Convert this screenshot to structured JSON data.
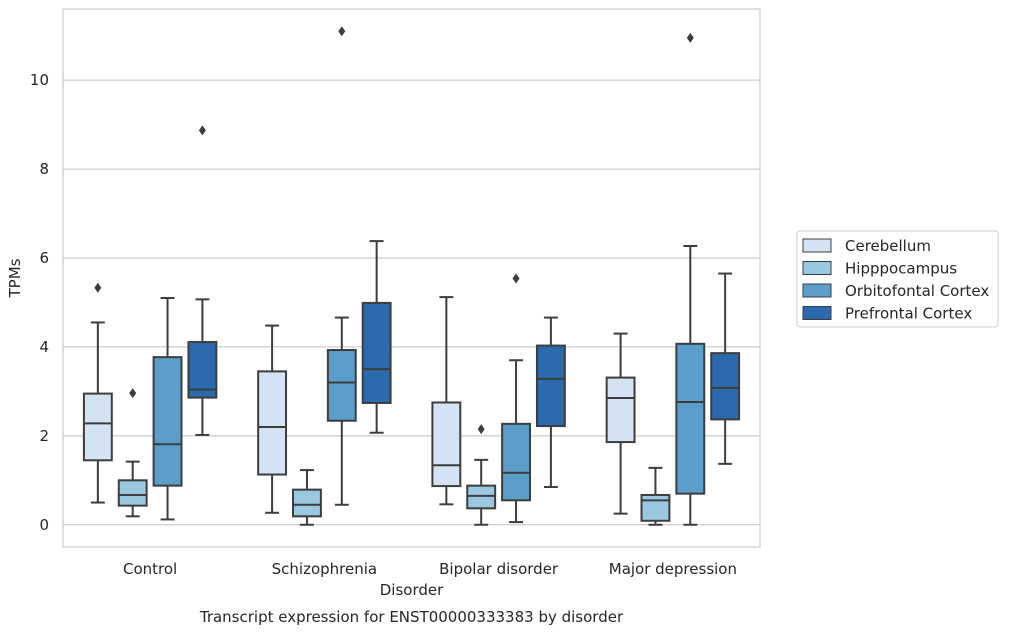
{
  "chart_data": {
    "type": "boxplot",
    "title": "",
    "caption": "Transcript expression for ENST00000333383 by disorder",
    "xlabel": "Disorder",
    "ylabel": "TPMs",
    "ylim": [
      -0.5,
      11.6
    ],
    "yticks": [
      0,
      2,
      4,
      6,
      8,
      10
    ],
    "grid": "horizontal",
    "legend_position": "right",
    "categories": [
      "Control",
      "Schizophrenia",
      "Bipolar disorder",
      "Major depression"
    ],
    "series": [
      {
        "name": "Cerebellum",
        "color": "#d3e3f3",
        "boxes": [
          {
            "whislo": 0.5,
            "q1": 1.45,
            "med": 2.28,
            "q3": 2.95,
            "whishi": 4.55,
            "fliers": [
              5.33
            ]
          },
          {
            "whislo": 0.27,
            "q1": 1.13,
            "med": 2.2,
            "q3": 3.45,
            "whishi": 4.48,
            "fliers": []
          },
          {
            "whislo": 0.46,
            "q1": 0.87,
            "med": 1.34,
            "q3": 2.75,
            "whishi": 5.12,
            "fliers": []
          },
          {
            "whislo": 0.25,
            "q1": 1.86,
            "med": 2.85,
            "q3": 3.31,
            "whishi": 4.3,
            "fliers": []
          }
        ]
      },
      {
        "name": "Hipppocampus",
        "color": "#9ac8e0",
        "boxes": [
          {
            "whislo": 0.19,
            "q1": 0.43,
            "med": 0.67,
            "q3": 1.0,
            "whishi": 1.42,
            "fliers": [
              2.96
            ]
          },
          {
            "whislo": 0.0,
            "q1": 0.19,
            "med": 0.45,
            "q3": 0.79,
            "whishi": 1.23,
            "fliers": []
          },
          {
            "whislo": 0.0,
            "q1": 0.37,
            "med": 0.65,
            "q3": 0.88,
            "whishi": 1.46,
            "fliers": [
              2.15
            ]
          },
          {
            "whislo": 0.0,
            "q1": 0.09,
            "med": 0.55,
            "q3": 0.67,
            "whishi": 1.28,
            "fliers": []
          }
        ]
      },
      {
        "name": "Orbitofontal Cortex",
        "color": "#5a9ec9",
        "boxes": [
          {
            "whislo": 0.12,
            "q1": 0.88,
            "med": 1.81,
            "q3": 3.77,
            "whishi": 5.1,
            "fliers": []
          },
          {
            "whislo": 0.45,
            "q1": 2.34,
            "med": 3.2,
            "q3": 3.93,
            "whishi": 4.66,
            "fliers": [
              11.1
            ]
          },
          {
            "whislo": 0.06,
            "q1": 0.55,
            "med": 1.17,
            "q3": 2.27,
            "whishi": 3.7,
            "fliers": [
              5.54
            ]
          },
          {
            "whislo": 0.0,
            "q1": 0.7,
            "med": 2.76,
            "q3": 4.07,
            "whishi": 6.27,
            "fliers": [
              10.95
            ]
          }
        ]
      },
      {
        "name": "Prefrontal Cortex",
        "color": "#2a6aad",
        "boxes": [
          {
            "whislo": 2.02,
            "q1": 2.86,
            "med": 3.04,
            "q3": 4.11,
            "whishi": 5.07,
            "fliers": [
              8.87
            ]
          },
          {
            "whislo": 2.07,
            "q1": 2.74,
            "med": 3.5,
            "q3": 4.99,
            "whishi": 6.38,
            "fliers": []
          },
          {
            "whislo": 0.85,
            "q1": 2.22,
            "med": 3.28,
            "q3": 4.03,
            "whishi": 4.66,
            "fliers": []
          },
          {
            "whislo": 1.37,
            "q1": 2.37,
            "med": 3.08,
            "q3": 3.86,
            "whishi": 5.65,
            "fliers": []
          }
        ]
      }
    ]
  }
}
